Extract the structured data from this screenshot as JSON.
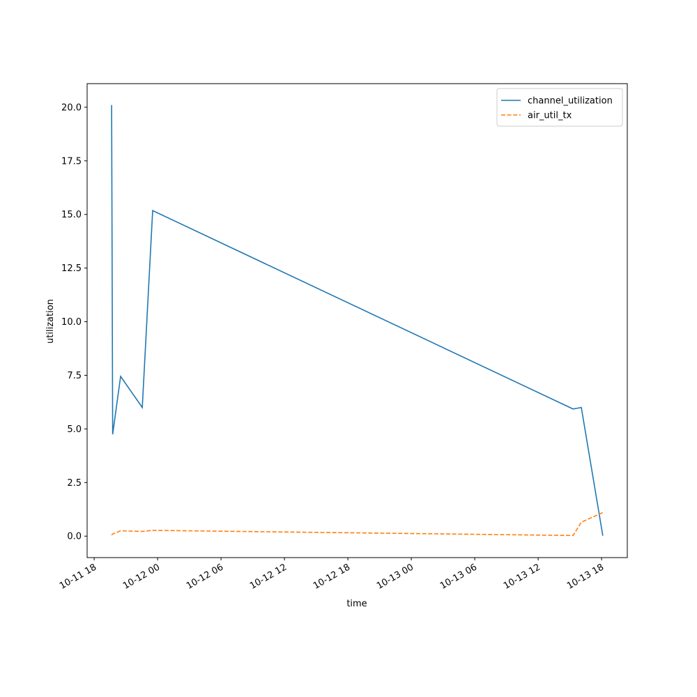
{
  "chart_data": {
    "type": "line",
    "xlabel": "time",
    "ylabel": "utilization",
    "x": [
      "10-11 19:39",
      "10-11 19:45",
      "10-11 20:30",
      "10-11 22:33",
      "10-11 23:32",
      "10-13 15:18",
      "10-13 16:05",
      "10-13 18:07"
    ],
    "series": [
      {
        "name": "channel_utilization",
        "color": "#1f77b4",
        "dash": "solid",
        "values": [
          20.1,
          4.75,
          7.45,
          6.0,
          15.18,
          5.93,
          6.0,
          0.02
        ]
      },
      {
        "name": "air_util_tx",
        "color": "#ff7f0e",
        "dash": "dashed",
        "values": [
          0.05,
          0.1,
          0.25,
          0.22,
          0.27,
          0.03,
          0.65,
          1.1
        ]
      }
    ],
    "xlim": [
      "10-11 17:20",
      "10-13 20:26"
    ],
    "xticks": [
      "10-11 18",
      "10-12 00",
      "10-12 06",
      "10-12 12",
      "10-12 18",
      "10-13 00",
      "10-13 06",
      "10-13 12",
      "10-13 18"
    ],
    "ylim": [
      -1.0,
      21.1
    ],
    "yticks": [
      {
        "value": 0,
        "label": "0.0"
      },
      {
        "value": 2.5,
        "label": "2.5"
      },
      {
        "value": 5,
        "label": "5.0"
      },
      {
        "value": 7.5,
        "label": "7.5"
      },
      {
        "value": 10,
        "label": "10.0"
      },
      {
        "value": 12.5,
        "label": "12.5"
      },
      {
        "value": 15,
        "label": "15.0"
      },
      {
        "value": 17.5,
        "label": "17.5"
      },
      {
        "value": 20,
        "label": "20.0"
      }
    ],
    "legend": "upper right",
    "grid": false
  }
}
